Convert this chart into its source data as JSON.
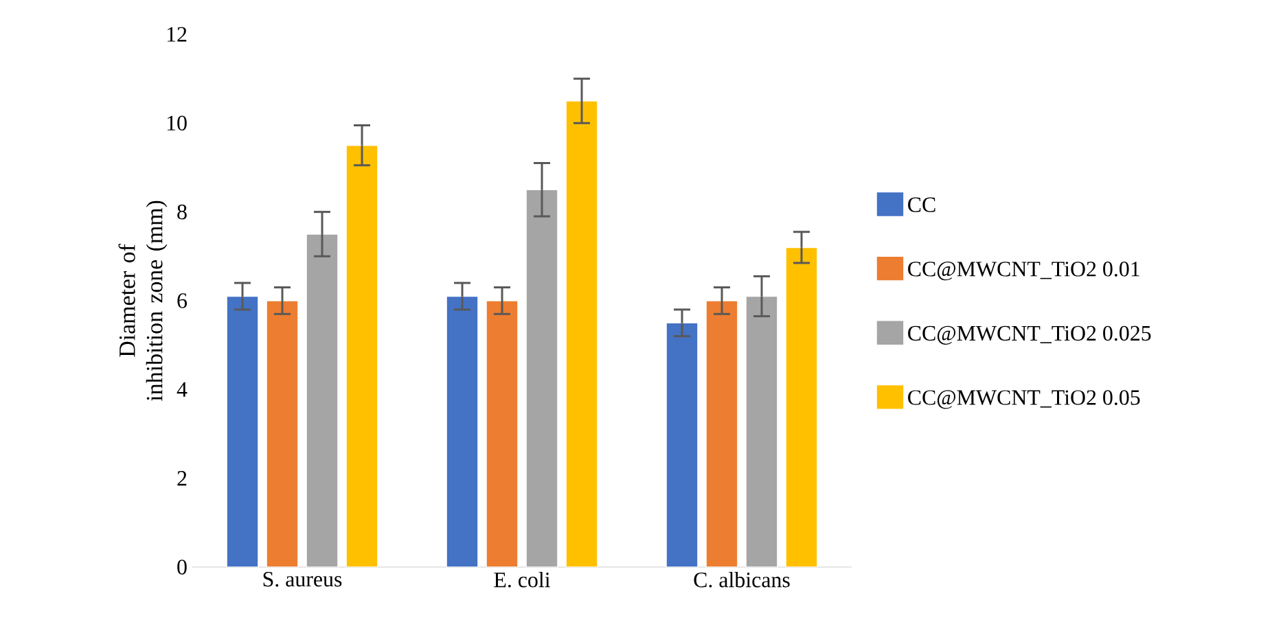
{
  "chart_data": {
    "type": "bar",
    "ylabel": "Diameter of inhibition zone (mm)",
    "categories": [
      "S. aureus",
      "E. coli",
      "C. albicans"
    ],
    "series": [
      {
        "name": "CC",
        "color": "#4472c4",
        "values": [
          6.1,
          6.1,
          5.5
        ],
        "errors": [
          0.3,
          0.3,
          0.3
        ]
      },
      {
        "name": "CC@MWCNT_TiO2 0.01",
        "color": "#ed7d31",
        "values": [
          6.0,
          6.0,
          6.0
        ],
        "errors": [
          0.3,
          0.3,
          0.3
        ]
      },
      {
        "name": "CC@MWCNT_TiO2 0.025",
        "color": "#a5a5a5",
        "values": [
          7.5,
          8.5,
          6.1
        ],
        "errors": [
          0.5,
          0.6,
          0.45
        ]
      },
      {
        "name": "CC@MWCNT_TiO2 0.05",
        "color": "#ffc000",
        "values": [
          9.5,
          10.5,
          7.2
        ],
        "errors": [
          0.45,
          0.5,
          0.35
        ]
      }
    ],
    "ylim": [
      0,
      12
    ],
    "yticks": [
      0,
      2,
      4,
      6,
      8,
      10,
      12
    ],
    "legend": "right"
  }
}
